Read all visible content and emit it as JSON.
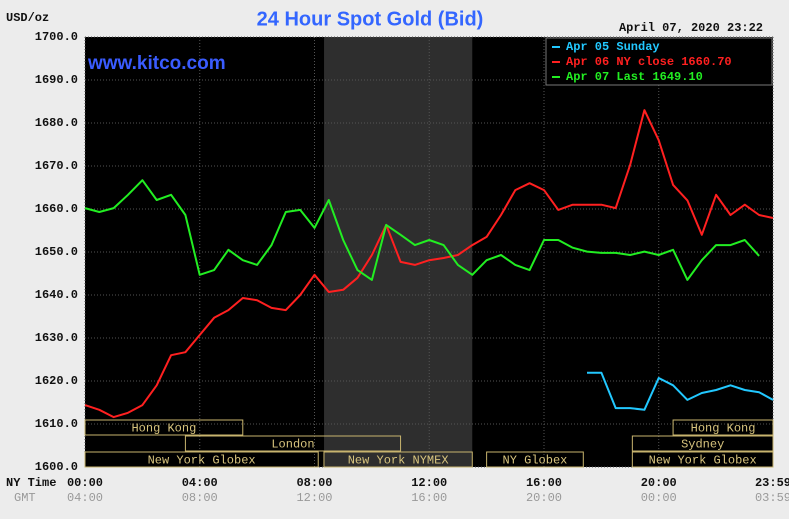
{
  "chart_data": {
    "type": "line",
    "title": "24 Hour Spot Gold (Bid)",
    "unit_label": "USD/oz",
    "timestamp": "April 07, 2020 23:22",
    "watermark": "www.kitco.com",
    "x_label": "NY Time",
    "x2_label": "GMT",
    "xlim": [
      0,
      23.983
    ],
    "xticks": [
      {
        "value": 0,
        "label": "00:00"
      },
      {
        "value": 4,
        "label": "04:00"
      },
      {
        "value": 8,
        "label": "08:00"
      },
      {
        "value": 12,
        "label": "12:00"
      },
      {
        "value": 16,
        "label": "16:00"
      },
      {
        "value": 20,
        "label": "20:00"
      },
      {
        "value": 23.983,
        "label": "23:59"
      }
    ],
    "gmt_labels": [
      "04:00",
      "08:00",
      "12:00",
      "16:00",
      "20:00",
      "00:00",
      "03:59"
    ],
    "ylim": [
      1600,
      1700
    ],
    "yticks": [
      {
        "value": 1600,
        "label": "1600.0"
      },
      {
        "value": 1610,
        "label": "1610.0"
      },
      {
        "value": 1620,
        "label": "1620.0"
      },
      {
        "value": 1630,
        "label": "1630.0"
      },
      {
        "value": 1640,
        "label": "1640.0"
      },
      {
        "value": 1650,
        "label": "1650.0"
      },
      {
        "value": 1660,
        "label": "1660.0"
      },
      {
        "value": 1670,
        "label": "1670.0"
      },
      {
        "value": 1680,
        "label": "1680.0"
      },
      {
        "value": 1690,
        "label": "1690.0"
      },
      {
        "value": 1700,
        "label": "1700.0"
      }
    ],
    "grid": true,
    "shaded_range": [
      8.333,
      13.5
    ],
    "x": [
      0,
      0.5,
      1,
      1.5,
      2,
      2.5,
      3,
      3.5,
      4,
      4.5,
      5,
      5.5,
      6,
      6.5,
      7,
      7.5,
      8,
      8.5,
      9,
      9.5,
      10,
      10.5,
      11,
      11.5,
      12,
      12.5,
      13,
      13.5,
      14,
      14.5,
      15,
      15.5,
      16,
      16.5,
      17,
      17.5,
      18,
      18.5,
      19,
      19.5,
      20,
      20.5,
      21,
      21.5,
      22,
      22.5,
      23,
      23.5,
      23.983
    ],
    "series": [
      {
        "name": "Apr 05 Sunday",
        "color": "#22c8ff",
        "values": [
          null,
          null,
          null,
          null,
          null,
          null,
          null,
          null,
          null,
          null,
          null,
          null,
          null,
          null,
          null,
          null,
          null,
          null,
          null,
          null,
          null,
          null,
          null,
          null,
          null,
          null,
          null,
          null,
          null,
          null,
          null,
          null,
          null,
          null,
          null,
          1621.9,
          1621.9,
          1613.7,
          1613.7,
          1613.3,
          1620.7,
          1619,
          1615.6,
          1617.2,
          1617.9,
          1619,
          1617.9,
          1617.4,
          1615.6
        ]
      },
      {
        "name": "Apr 06 NY close 1660.70",
        "color": "#ff2020",
        "values": [
          1614.4,
          1613.3,
          1611.6,
          1612.6,
          1614.4,
          1619,
          1626,
          1626.7,
          1630.7,
          1634.7,
          1636.5,
          1639.3,
          1638.8,
          1637,
          1636.5,
          1640,
          1644.7,
          1640.7,
          1641.2,
          1644,
          1649.3,
          1656.3,
          1647.7,
          1647,
          1648.1,
          1648.6,
          1649.3,
          1651.6,
          1653.5,
          1658.6,
          1664.4,
          1666,
          1664.4,
          1659.8,
          1661,
          1661,
          1661,
          1660.2,
          1670.2,
          1683,
          1676,
          1665.6,
          1662,
          1654,
          1663.3,
          1658.6,
          1661,
          1658.6,
          1657.9
        ]
      },
      {
        "name": "Apr 07 Last 1649.10",
        "color": "#22ee22",
        "values": [
          1660.2,
          1659.3,
          1660.2,
          1663.3,
          1666.7,
          1662.1,
          1663.3,
          1658.6,
          1644.7,
          1645.8,
          1650.5,
          1648.1,
          1647,
          1651.6,
          1659.3,
          1659.8,
          1655.6,
          1662.1,
          1652.8,
          1645.8,
          1643.5,
          1656.3,
          1654,
          1651.6,
          1652.8,
          1651.6,
          1647,
          1644.7,
          1648.1,
          1649.3,
          1647,
          1645.8,
          1652.8,
          1652.8,
          1651,
          1650.1,
          1649.8,
          1649.8,
          1649.3,
          1650.1,
          1649.3,
          1650.5,
          1643.5,
          1648.1,
          1651.6,
          1651.6,
          1652.8,
          1649.1,
          null
        ]
      }
    ],
    "sessions": [
      [
        {
          "label": "Hong Kong",
          "start": 0,
          "end": 5.5
        },
        {
          "label": "Hong Kong",
          "start": 20.5,
          "end": 24
        }
      ],
      [
        {
          "label": "London",
          "start": 3.5,
          "end": 11
        },
        {
          "label": "Sydney",
          "start": 19.08,
          "end": 24
        }
      ],
      [
        {
          "label": "New York Globex",
          "start": 0,
          "end": 8.13
        },
        {
          "label": "New York NYMEX",
          "start": 8.33,
          "end": 13.5
        },
        {
          "label": "NY Globex",
          "start": 14,
          "end": 17.37
        },
        {
          "label": "New York Globex",
          "start": 19.08,
          "end": 24
        }
      ]
    ]
  }
}
